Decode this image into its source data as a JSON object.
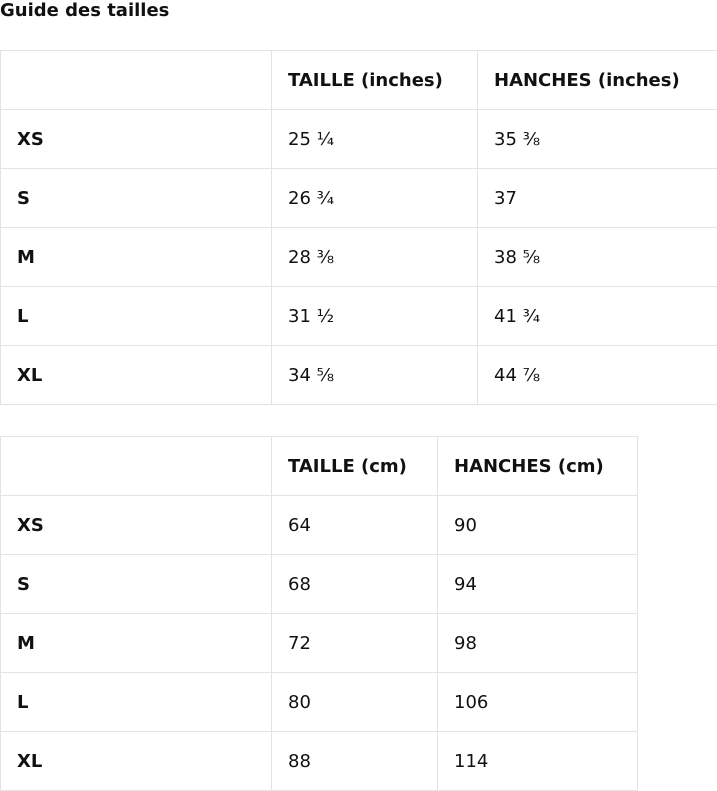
{
  "title": "Guide des tailles",
  "tables": [
    {
      "headers": [
        "",
        "TAILLE (inches)",
        "HANCHES (inches)"
      ],
      "rows": [
        [
          "XS",
          "25 ¼",
          "35 ⅜"
        ],
        [
          "S",
          "26 ¾",
          "37"
        ],
        [
          "M",
          "28 ⅜",
          "38 ⅝"
        ],
        [
          "L",
          "31 ½",
          "41 ¾"
        ],
        [
          "XL",
          "34 ⅝",
          "44 ⅞"
        ]
      ]
    },
    {
      "headers": [
        "",
        "TAILLE (cm)",
        "HANCHES (cm)"
      ],
      "rows": [
        [
          "XS",
          "64",
          "90"
        ],
        [
          "S",
          "68",
          "94"
        ],
        [
          "M",
          "72",
          "98"
        ],
        [
          "L",
          "80",
          "106"
        ],
        [
          "XL",
          "88",
          "114"
        ]
      ]
    }
  ]
}
